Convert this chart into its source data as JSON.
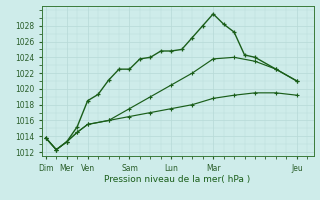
{
  "xlabel": "Pression niveau de la mer( hPa )",
  "bg_color": "#ceecea",
  "grid_color": "#b8dbd8",
  "line_color": "#1a5e1a",
  "ylim": [
    1011.5,
    1030.5
  ],
  "yticks": [
    1012,
    1014,
    1016,
    1018,
    1020,
    1022,
    1024,
    1026,
    1028
  ],
  "x_major_ticks": [
    0,
    1,
    2,
    4,
    6,
    8,
    12
  ],
  "x_major_labels": [
    "Dim",
    "Mer",
    "Ven",
    "Sam",
    "Lun",
    "Mar",
    "Jeu"
  ],
  "xlim": [
    -0.2,
    12.8
  ],
  "series1_x": [
    0,
    0.5,
    1,
    1.5,
    2,
    2.5,
    3,
    3.5,
    4,
    4.5,
    5,
    5.5,
    6,
    6.5,
    7,
    7.5,
    8,
    8.5,
    9,
    9.5,
    10,
    11,
    12
  ],
  "series1_y": [
    1013.8,
    1012.3,
    1013.3,
    1015.2,
    1018.5,
    1019.3,
    1021.1,
    1022.5,
    1022.5,
    1023.8,
    1024.0,
    1024.8,
    1024.8,
    1025.0,
    1026.5,
    1028.0,
    1029.5,
    1028.2,
    1027.2,
    1024.3,
    1024.0,
    1022.5,
    1021.0
  ],
  "series2_x": [
    0,
    0.5,
    1,
    1.5,
    2,
    3,
    4,
    5,
    6,
    7,
    8,
    9,
    10,
    11,
    12
  ],
  "series2_y": [
    1013.8,
    1012.3,
    1013.3,
    1014.5,
    1015.5,
    1016.0,
    1017.5,
    1019.0,
    1020.5,
    1022.0,
    1023.8,
    1024.0,
    1023.5,
    1022.5,
    1021.0
  ],
  "series3_x": [
    0,
    0.5,
    1,
    1.5,
    2,
    3,
    4,
    5,
    6,
    7,
    8,
    9,
    10,
    11,
    12
  ],
  "series3_y": [
    1013.8,
    1012.3,
    1013.3,
    1014.5,
    1015.5,
    1016.0,
    1016.5,
    1017.0,
    1017.5,
    1018.0,
    1018.8,
    1019.2,
    1019.5,
    1019.5,
    1019.2
  ]
}
